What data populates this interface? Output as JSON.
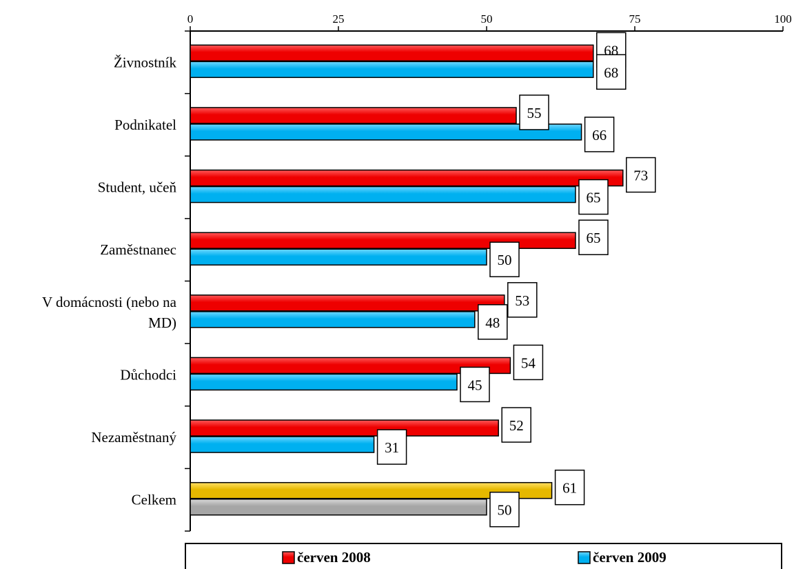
{
  "chart_data": {
    "type": "bar",
    "orientation": "horizontal",
    "categories": [
      "Živnostník",
      "Podnikatel",
      "Student, učeň",
      "Zaměstnanec",
      [
        "V domácnosti (nebo na",
        "MD)"
      ],
      "Důchodci",
      "Nezaměstnaný",
      "Celkem"
    ],
    "series": [
      {
        "name": "červen 2008",
        "color": "#ff0000",
        "values": [
          68,
          55,
          73,
          65,
          53,
          54,
          52,
          61
        ]
      },
      {
        "name": "červen 2009",
        "color": "#00b0f0",
        "values": [
          68,
          66,
          65,
          50,
          48,
          45,
          31,
          50
        ]
      }
    ],
    "total_colors": {
      "červen 2008": "#f2c000",
      "červen 2009": "#a6a6a6"
    },
    "xlim": [
      0,
      100
    ],
    "xticks": [
      0,
      25,
      50,
      75,
      100
    ],
    "x_axis_position": "top",
    "grid": false,
    "legend_position": "bottom",
    "data_labels": true
  }
}
